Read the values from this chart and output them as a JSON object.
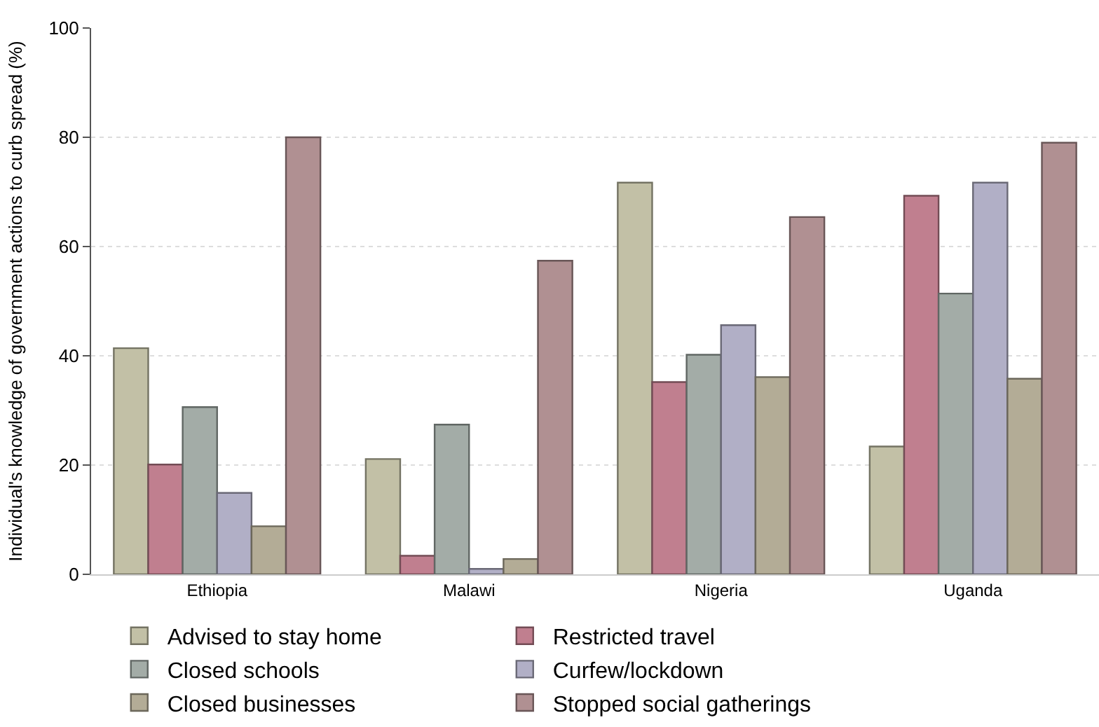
{
  "chart_data": {
    "type": "bar",
    "ylabel": "Individual's knowledge of government actions to curb spread (%)",
    "categories": [
      "Ethiopia",
      "Malawi",
      "Nigeria",
      "Uganda"
    ],
    "series": [
      {
        "name": "Advised to stay home",
        "color": "#c2c0a6",
        "values": [
          41.4,
          21.1,
          71.7,
          23.4
        ]
      },
      {
        "name": "Restricted travel",
        "color": "#c07f8f",
        "values": [
          20.1,
          3.4,
          35.2,
          69.3
        ]
      },
      {
        "name": "Closed schools",
        "color": "#a3aca7",
        "values": [
          30.6,
          27.4,
          40.2,
          51.4
        ]
      },
      {
        "name": "Curfew/lockdown",
        "color": "#b1afc6",
        "values": [
          14.9,
          1.0,
          45.6,
          71.7
        ]
      },
      {
        "name": "Closed businesses",
        "color": "#b3ac96",
        "values": [
          8.8,
          2.8,
          36.1,
          35.8
        ]
      },
      {
        "name": "Stopped social gatherings",
        "color": "#b09092",
        "values": [
          80.0,
          57.4,
          65.4,
          79.0
        ]
      }
    ],
    "ylim": [
      0,
      100
    ],
    "yticks": [
      0,
      20,
      40,
      60,
      80,
      100
    ],
    "grid": "y",
    "legend": "bottom"
  }
}
